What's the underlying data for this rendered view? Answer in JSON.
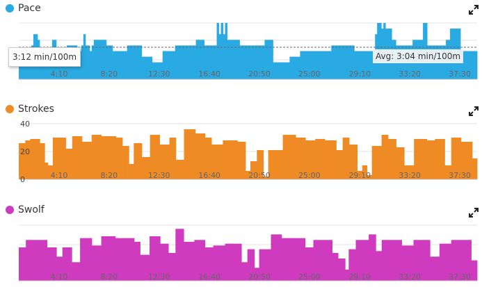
{
  "panels": [
    {
      "key": "pace",
      "title": "Pace",
      "color": "#2aaae2"
    },
    {
      "key": "strokes",
      "title": "Strokes",
      "color": "#ef8b24"
    },
    {
      "key": "swolf",
      "title": "Swolf",
      "color": "#cf3bbf"
    }
  ],
  "pace_tooltip": "3:12 min/100m",
  "pace_avg_label": "Avg: 3:04 min/100m",
  "icons": {
    "expand": "expand-arrows-icon"
  },
  "chart_data": [
    {
      "type": "area",
      "title": "Pace",
      "x_ticks": [
        "4:10",
        "8:20",
        "12:30",
        "16:40",
        "20:50",
        "25:00",
        "29:10",
        "33:20",
        "37:30"
      ],
      "x_tick_fractions": [
        0.088,
        0.197,
        0.306,
        0.416,
        0.525,
        0.634,
        0.744,
        0.853,
        0.962
      ],
      "average": "3:04 min/100m",
      "ylim": [
        0,
        10
      ],
      "values": [
        4,
        4,
        4,
        4,
        4,
        4,
        6,
        8,
        8,
        7,
        3,
        3,
        3,
        3,
        4,
        5,
        7,
        7,
        5,
        5,
        5,
        5,
        5,
        6,
        6,
        6,
        6,
        6,
        5,
        5,
        6,
        8,
        6,
        6,
        5,
        6,
        7,
        7,
        7,
        7,
        7,
        7,
        6,
        6,
        6,
        5,
        5,
        5,
        5,
        5,
        5,
        5,
        6,
        6,
        6,
        6,
        6,
        6,
        6,
        4,
        4,
        4,
        4,
        4,
        3,
        3,
        3,
        3,
        3,
        5,
        5,
        5,
        5,
        5,
        5,
        6,
        6,
        6,
        6,
        6,
        6,
        6,
        6,
        6,
        6,
        7,
        7,
        7,
        7,
        6,
        6,
        6,
        6,
        6,
        6,
        10,
        8,
        10,
        8,
        10,
        7,
        7,
        7,
        7,
        7,
        7,
        6,
        6,
        6,
        6,
        6,
        6,
        6,
        6,
        6,
        6,
        6,
        6,
        7,
        7,
        7,
        7,
        3,
        3,
        3,
        3,
        3,
        3,
        3,
        3,
        4,
        4,
        4,
        4,
        4,
        5,
        5,
        5,
        5,
        5,
        5,
        5,
        5,
        5,
        5,
        5,
        5,
        5,
        5,
        5,
        6,
        6,
        6,
        6,
        6,
        6,
        6,
        6,
        6,
        6,
        6,
        5,
        5,
        5,
        5,
        5,
        5,
        5,
        5,
        5,
        5,
        8,
        10,
        10,
        9,
        10,
        9,
        9,
        9,
        7,
        7,
        6,
        6,
        6,
        6,
        6,
        6,
        6,
        6,
        7,
        7,
        7,
        7,
        7,
        10,
        10,
        6,
        6,
        6,
        6,
        6,
        6,
        6,
        6,
        6,
        7,
        7,
        9,
        9,
        9,
        9,
        9,
        5,
        5,
        5,
        5,
        5,
        5,
        5,
        5
      ]
    },
    {
      "type": "area",
      "title": "Strokes",
      "x_ticks": [
        "4:10",
        "8:20",
        "12:30",
        "16:40",
        "20:50",
        "25:00",
        "29:10",
        "33:20",
        "37:30"
      ],
      "x_tick_fractions": [
        0.088,
        0.197,
        0.306,
        0.416,
        0.525,
        0.634,
        0.744,
        0.853,
        0.962
      ],
      "yticks": [
        "40",
        "20",
        "0"
      ],
      "ylim": [
        0,
        40
      ],
      "values": [
        26,
        26,
        26,
        26,
        28,
        28,
        28,
        29,
        29,
        29,
        29,
        29,
        29,
        26,
        26,
        26,
        12,
        12,
        10,
        10,
        10,
        30,
        30,
        30,
        30,
        30,
        30,
        30,
        30,
        22,
        22,
        22,
        22,
        31,
        31,
        31,
        31,
        31,
        31,
        27,
        27,
        27,
        27,
        27,
        27,
        32,
        32,
        32,
        32,
        32,
        32,
        31,
        31,
        31,
        31,
        31,
        31,
        31,
        31,
        31,
        30,
        30,
        30,
        30,
        24,
        24,
        24,
        24,
        11,
        11,
        11,
        26,
        26,
        26,
        26,
        26,
        16,
        16,
        16,
        16,
        16,
        32,
        32,
        32,
        32,
        32,
        32,
        25,
        25,
        25,
        25,
        25,
        25,
        30,
        30,
        30,
        30,
        14,
        14,
        14,
        14,
        14,
        36,
        36,
        36,
        36,
        36,
        36,
        36,
        33,
        33,
        33,
        33,
        33,
        33,
        30,
        30,
        30,
        30,
        25,
        25,
        25,
        25,
        25,
        25,
        25,
        28,
        28,
        28,
        28,
        28,
        28,
        28,
        28,
        28,
        27,
        27,
        27,
        27,
        27,
        6,
        6,
        6,
        13,
        13,
        13,
        13,
        21,
        21,
        21,
        21,
        2,
        2,
        2,
        21,
        21,
        21,
        21,
        21,
        21,
        21,
        21,
        21,
        32,
        32,
        32,
        32,
        32,
        32,
        32,
        32,
        30,
        30,
        30,
        30,
        30,
        30,
        28,
        28,
        28,
        28,
        28,
        28,
        29,
        29,
        29,
        29,
        29,
        29,
        28,
        28,
        28,
        28,
        28,
        28,
        28,
        21,
        21,
        21,
        21,
        30,
        30,
        30,
        30,
        25,
        25,
        25,
        25,
        25,
        6,
        6,
        6,
        10,
        10,
        10,
        3,
        3,
        3,
        24,
        24,
        24,
        24,
        24,
        24,
        32,
        32,
        32,
        32,
        29,
        29,
        29,
        29,
        29,
        23,
        23,
        23,
        23,
        23,
        10,
        10,
        10,
        10,
        10,
        10,
        29,
        29,
        29,
        29,
        29,
        29,
        29,
        29,
        28,
        28,
        28,
        28,
        28,
        29,
        29,
        29,
        29,
        29,
        29,
        10,
        10,
        10,
        10,
        30,
        30,
        30,
        30,
        30,
        30,
        27,
        27,
        27,
        27,
        27,
        27,
        27,
        15,
        15,
        15
      ]
    },
    {
      "type": "area",
      "title": "Swolf",
      "x_ticks": [
        "4:10",
        "8:20",
        "12:30",
        "16:40",
        "20:50",
        "25:00",
        "29:10",
        "33:20",
        "37:30"
      ],
      "x_tick_fractions": [
        0.088,
        0.197,
        0.306,
        0.416,
        0.525,
        0.634,
        0.744,
        0.853,
        0.962
      ],
      "ylim": [
        0,
        60
      ],
      "values": [
        36,
        36,
        36,
        36,
        36,
        36,
        44,
        44,
        44,
        44,
        44,
        44,
        44,
        44,
        44,
        44,
        44,
        44,
        44,
        44,
        44,
        44,
        44,
        44,
        36,
        36,
        36,
        36,
        36,
        36,
        36,
        36,
        26,
        26,
        26,
        26,
        26,
        36,
        36,
        36,
        36,
        36,
        36,
        36,
        36,
        20,
        20,
        20,
        20,
        20,
        20,
        20,
        46,
        46,
        46,
        46,
        46,
        46,
        46,
        46,
        46,
        46,
        38,
        38,
        38,
        38,
        38,
        38,
        38,
        38,
        48,
        48,
        48,
        48,
        48,
        48,
        48,
        48,
        48,
        48,
        48,
        48,
        46,
        46,
        46,
        46,
        46,
        46,
        46,
        46,
        46,
        46,
        46,
        46,
        46,
        46,
        46,
        46,
        42,
        42,
        42,
        42,
        42,
        28,
        28,
        28,
        28,
        28,
        28,
        28,
        28,
        48,
        48,
        48,
        48,
        48,
        48,
        48,
        48,
        48,
        40,
        40,
        40,
        40,
        40,
        40,
        40,
        30,
        30,
        30,
        30,
        30,
        30,
        56,
        56,
        56,
        56,
        56,
        56,
        56,
        42,
        42,
        42,
        42,
        42,
        42,
        42,
        42,
        42,
        44,
        44,
        44,
        44,
        44,
        44,
        44,
        44,
        44,
        36,
        36,
        36,
        36,
        36,
        36,
        36,
        38,
        38,
        38,
        38,
        38,
        38,
        38,
        38,
        38,
        38,
        40,
        40,
        40,
        40,
        40,
        40,
        40,
        40,
        40,
        40,
        40,
        40,
        40,
        40,
        20,
        20,
        20,
        20,
        20,
        34,
        34,
        34,
        34,
        34,
        34,
        14,
        14,
        14,
        14,
        34,
        34,
        34,
        34,
        34,
        34,
        34,
        34,
        34,
        34,
        50,
        50,
        50,
        50,
        50,
        50,
        50,
        50,
        50,
        46,
        46,
        46,
        46,
        46,
        46,
        46,
        46,
        46,
        46,
        46,
        46,
        46,
        46,
        46,
        46,
        46,
        46,
        46,
        46,
        36,
        36,
        36,
        36,
        36,
        36,
        36,
        44,
        44,
        44,
        44,
        44,
        44,
        44,
        44,
        44,
        44,
        44,
        44,
        44,
        44,
        44,
        44,
        30,
        30,
        30,
        30,
        30,
        24,
        24,
        24,
        24,
        24,
        24,
        12,
        12,
        12,
        34,
        34,
        34,
        34,
        34,
        34,
        44,
        44,
        44,
        44,
        44,
        44,
        44,
        44,
        44,
        44,
        44,
        50,
        50,
        50,
        50,
        50,
        50,
        32,
        32,
        32,
        32,
        32,
        44,
        44,
        44,
        44,
        44,
        44,
        44,
        44,
        44,
        44,
        44,
        44,
        44,
        44,
        44,
        44,
        44,
        38,
        38,
        38,
        38,
        38,
        38,
        38,
        38,
        38,
        38,
        44,
        44,
        44,
        44,
        44,
        44,
        44,
        44,
        44,
        44,
        44,
        44,
        44,
        44,
        26,
        26,
        26,
        26,
        26,
        26,
        26,
        26,
        40,
        40,
        40,
        40,
        40,
        40,
        40,
        40,
        40,
        40,
        44,
        44,
        44,
        44,
        44,
        44,
        44,
        44,
        44,
        44,
        44,
        44,
        44,
        44,
        44,
        44,
        44,
        22,
        22,
        22,
        22,
        22
      ]
    }
  ]
}
